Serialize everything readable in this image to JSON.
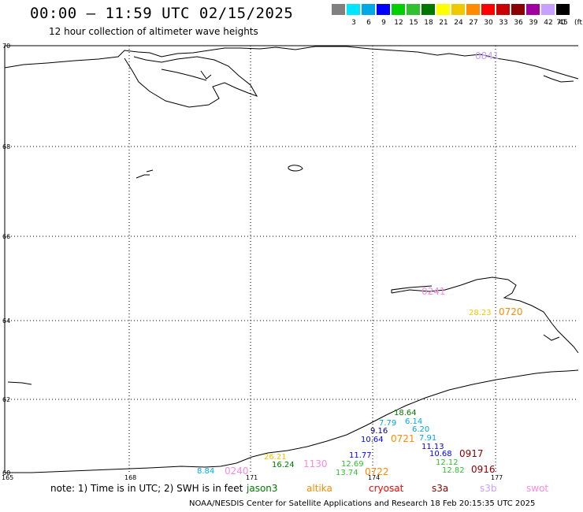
{
  "header": {
    "title": "00:00 – 11:59 UTC 02/15/2025",
    "subtitle": "12 hour collection of altimeter wave heights"
  },
  "color_scale": {
    "labels": [
      "3",
      "6",
      "9",
      "12",
      "15",
      "18",
      "21",
      "24",
      "27",
      "30",
      "33",
      "36",
      "39",
      "42",
      "45",
      "70"
    ],
    "colors": [
      "#808080",
      "#00e5ff",
      "#00a8e8",
      "#0000ff",
      "#00d000",
      "#30c030",
      "#007800",
      "#ffff00",
      "#f0c800",
      "#ff8c00",
      "#ff0000",
      "#c80000",
      "#8b0000",
      "#a000a0",
      "#c8a0ff",
      "#000000"
    ],
    "units": "(ft)"
  },
  "map": {
    "lat_labels": [
      "70",
      "68",
      "66",
      "64",
      "62",
      "60"
    ],
    "lon_labels": [
      "165",
      "168",
      "171",
      "174",
      "177"
    ]
  },
  "observations": [
    {
      "text": "0841",
      "color": "#c8a0ff",
      "bold": true
    },
    {
      "text": "0241",
      "color": "#ff88dd",
      "bold": true
    },
    {
      "text": "0720",
      "color": "#ff8c00",
      "bold": true
    },
    {
      "text": "28.23",
      "color": "#f0c800",
      "bold": false
    },
    {
      "text": "18.64",
      "color": "#007800",
      "bold": false
    },
    {
      "text": "7.79",
      "color": "#00a8e8",
      "bold": false
    },
    {
      "text": "6.14",
      "color": "#00a8e8",
      "bold": false
    },
    {
      "text": "9.16",
      "color": "#000080",
      "bold": false
    },
    {
      "text": "6.20",
      "color": "#00a8e8",
      "bold": false
    },
    {
      "text": "10.64",
      "color": "#0000ff",
      "bold": false
    },
    {
      "text": "0721",
      "color": "#ff8c00",
      "bold": true
    },
    {
      "text": "7.91",
      "color": "#00a8e8",
      "bold": false
    },
    {
      "text": "11.13",
      "color": "#0000ff",
      "bold": false
    },
    {
      "text": "11.77",
      "color": "#0000ff",
      "bold": false
    },
    {
      "text": "10.68",
      "color": "#0000ff",
      "bold": false
    },
    {
      "text": "0917",
      "color": "#8b0000",
      "bold": true
    },
    {
      "text": "26.21",
      "color": "#f0c800",
      "bold": false
    },
    {
      "text": "16.24",
      "color": "#007800",
      "bold": false
    },
    {
      "text": "1130",
      "color": "#ff88dd",
      "bold": true
    },
    {
      "text": "12.69",
      "color": "#30c030",
      "bold": false
    },
    {
      "text": "12.12",
      "color": "#30c030",
      "bold": false
    },
    {
      "text": "13.74",
      "color": "#30c030",
      "bold": false
    },
    {
      "text": "0722",
      "color": "#ff8c00",
      "bold": true
    },
    {
      "text": "12.82",
      "color": "#30c030",
      "bold": false
    },
    {
      "text": "0916",
      "color": "#8b0000",
      "bold": true
    },
    {
      "text": "8.84",
      "color": "#00a8e8",
      "bold": false
    },
    {
      "text": "0240",
      "color": "#ff88dd",
      "bold": true
    }
  ],
  "note": "note:  1) Time is in UTC;  2) SWH is in feet",
  "missions": [
    {
      "name": "jason3",
      "color": "#007800"
    },
    {
      "name": "altika",
      "color": "#ff8c00"
    },
    {
      "name": "cryosat",
      "color": "#ff0000"
    },
    {
      "name": "s3a",
      "color": "#8b0000"
    },
    {
      "name": "s3b",
      "color": "#c8a0ff"
    },
    {
      "name": "swot",
      "color": "#ff88dd"
    }
  ],
  "footer": "NOAA/NESDIS Center for Satellite Applications and Research    18 Feb 20:15:35 UTC 2025"
}
